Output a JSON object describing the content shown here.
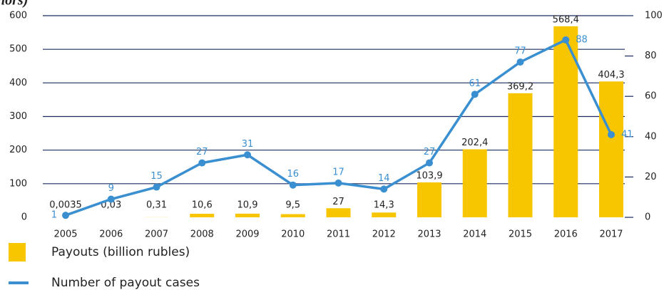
{
  "chart_data": {
    "type": "bar_line",
    "title": "hors)",
    "categories": [
      "2005",
      "2006",
      "2007",
      "2008",
      "2009",
      "2010",
      "2011",
      "2012",
      "2013",
      "2014",
      "2015",
      "2016",
      "2017"
    ],
    "series": [
      {
        "name": "Payouts (billion rubles)",
        "type": "bar",
        "color": "#f7c600",
        "values": [
          0.0035,
          0.03,
          0.31,
          10.6,
          10.9,
          9.5,
          27,
          14.3,
          103.9,
          202.4,
          369.2,
          568.4,
          404.3
        ],
        "value_labels": [
          "0,0035",
          "0,03",
          "0,31",
          "10,6",
          "10,9",
          "9,5",
          "27",
          "14,3",
          "103,9",
          "202,4",
          "369,2",
          "568,4",
          "404,3"
        ]
      },
      {
        "name": "Number of payout cases",
        "type": "line",
        "axis": "y2",
        "color": "#3a8fd0",
        "values": [
          1,
          9,
          15,
          27,
          31,
          16,
          17,
          14,
          27,
          61,
          77,
          88,
          41
        ]
      }
    ],
    "ylim": [
      0,
      600
    ],
    "yticks": [
      0,
      100,
      200,
      300,
      400,
      500,
      600
    ],
    "y2lim": [
      0,
      100
    ],
    "y2ticks": [
      0,
      20,
      40,
      60,
      80,
      100
    ],
    "grid": true
  }
}
